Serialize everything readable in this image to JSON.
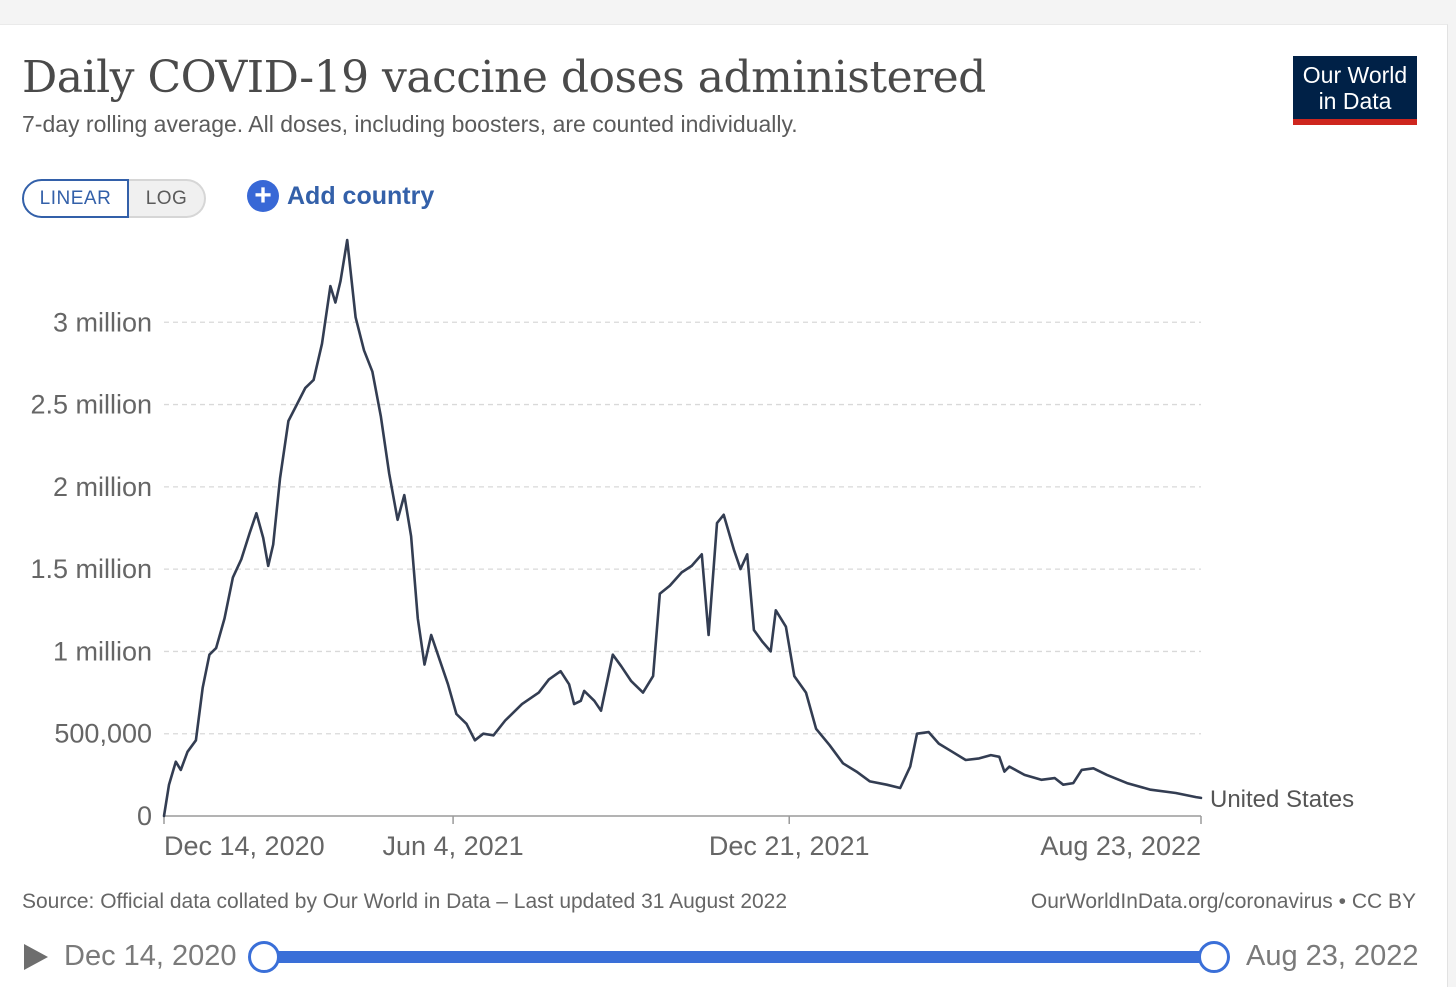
{
  "header": {
    "title": "Daily COVID-19 vaccine doses administered",
    "subtitle": "7-day rolling average. All doses, including boosters, are counted individually."
  },
  "logo": {
    "line1": "Our World",
    "line2": "in Data"
  },
  "controls": {
    "scale_linear": "LINEAR",
    "scale_log": "LOG",
    "selected_scale": "LINEAR",
    "add_country": "Add country",
    "add_icon": "plus-circle-icon"
  },
  "footer": {
    "source": "Source: Official data collated by Our World in Data – Last updated 31 August 2022",
    "license": "OurWorldInData.org/coronavirus • CC BY"
  },
  "timeline": {
    "start_label": "Dec 14, 2020",
    "end_label": "Aug 23, 2022",
    "play_icon": "play-icon",
    "range_fraction": [
      0,
      1
    ]
  },
  "colors": {
    "line": "#333d52",
    "accent": "#3360a9",
    "slider": "#3a6fd8",
    "logo_bg": "#002147",
    "logo_bar": "#ce261e"
  },
  "chart_data": {
    "type": "line",
    "title": "Daily COVID-19 vaccine doses administered",
    "ylim": [
      0,
      3500000
    ],
    "y_ticks": [
      {
        "value": 0,
        "label": "0"
      },
      {
        "value": 500000,
        "label": "500,000"
      },
      {
        "value": 1000000,
        "label": "1 million"
      },
      {
        "value": 1500000,
        "label": "1.5 million"
      },
      {
        "value": 2000000,
        "label": "2 million"
      },
      {
        "value": 2500000,
        "label": "2.5 million"
      },
      {
        "value": 3000000,
        "label": "3 million"
      }
    ],
    "x_range": [
      "2020-12-14",
      "2022-08-23"
    ],
    "x_ticks": [
      {
        "date": "2020-12-14",
        "label": "Dec 14, 2020"
      },
      {
        "date": "2021-06-04",
        "label": "Jun 4, 2021"
      },
      {
        "date": "2021-12-21",
        "label": "Dec 21, 2021"
      },
      {
        "date": "2022-08-23",
        "label": "Aug 23, 2022"
      }
    ],
    "grid": "horizontal-dashed",
    "series": [
      {
        "name": "United States",
        "points": [
          [
            "2020-12-14",
            0
          ],
          [
            "2020-12-17",
            190000
          ],
          [
            "2020-12-21",
            330000
          ],
          [
            "2020-12-24",
            280000
          ],
          [
            "2020-12-28",
            390000
          ],
          [
            "2021-01-02",
            460000
          ],
          [
            "2021-01-06",
            780000
          ],
          [
            "2021-01-10",
            980000
          ],
          [
            "2021-01-14",
            1020000
          ],
          [
            "2021-01-19",
            1200000
          ],
          [
            "2021-01-24",
            1450000
          ],
          [
            "2021-01-29",
            1560000
          ],
          [
            "2021-02-03",
            1720000
          ],
          [
            "2021-02-07",
            1840000
          ],
          [
            "2021-02-11",
            1690000
          ],
          [
            "2021-02-14",
            1520000
          ],
          [
            "2021-02-17",
            1650000
          ],
          [
            "2021-02-21",
            2050000
          ],
          [
            "2021-02-26",
            2400000
          ],
          [
            "2021-03-03",
            2500000
          ],
          [
            "2021-03-08",
            2600000
          ],
          [
            "2021-03-13",
            2650000
          ],
          [
            "2021-03-18",
            2870000
          ],
          [
            "2021-03-23",
            3220000
          ],
          [
            "2021-03-26",
            3120000
          ],
          [
            "2021-03-29",
            3250000
          ],
          [
            "2021-04-02",
            3500000
          ],
          [
            "2021-04-07",
            3030000
          ],
          [
            "2021-04-12",
            2830000
          ],
          [
            "2021-04-17",
            2700000
          ],
          [
            "2021-04-22",
            2430000
          ],
          [
            "2021-04-27",
            2080000
          ],
          [
            "2021-05-02",
            1800000
          ],
          [
            "2021-05-06",
            1950000
          ],
          [
            "2021-05-10",
            1700000
          ],
          [
            "2021-05-14",
            1200000
          ],
          [
            "2021-05-18",
            920000
          ],
          [
            "2021-05-22",
            1100000
          ],
          [
            "2021-05-27",
            950000
          ],
          [
            "2021-06-01",
            800000
          ],
          [
            "2021-06-06",
            620000
          ],
          [
            "2021-06-12",
            560000
          ],
          [
            "2021-06-17",
            460000
          ],
          [
            "2021-06-22",
            500000
          ],
          [
            "2021-06-28",
            490000
          ],
          [
            "2021-07-05",
            580000
          ],
          [
            "2021-07-15",
            680000
          ],
          [
            "2021-07-25",
            750000
          ],
          [
            "2021-07-31",
            830000
          ],
          [
            "2021-08-07",
            880000
          ],
          [
            "2021-08-12",
            800000
          ],
          [
            "2021-08-15",
            680000
          ],
          [
            "2021-08-19",
            700000
          ],
          [
            "2021-08-21",
            760000
          ],
          [
            "2021-08-27",
            700000
          ],
          [
            "2021-08-31",
            640000
          ],
          [
            "2021-09-07",
            980000
          ],
          [
            "2021-09-12",
            910000
          ],
          [
            "2021-09-18",
            820000
          ],
          [
            "2021-09-25",
            750000
          ],
          [
            "2021-10-01",
            850000
          ],
          [
            "2021-10-05",
            1350000
          ],
          [
            "2021-10-11",
            1400000
          ],
          [
            "2021-10-18",
            1480000
          ],
          [
            "2021-10-24",
            1520000
          ],
          [
            "2021-10-30",
            1590000
          ],
          [
            "2021-11-03",
            1100000
          ],
          [
            "2021-11-08",
            1780000
          ],
          [
            "2021-11-12",
            1830000
          ],
          [
            "2021-11-18",
            1620000
          ],
          [
            "2021-11-22",
            1500000
          ],
          [
            "2021-11-26",
            1590000
          ],
          [
            "2021-11-30",
            1130000
          ],
          [
            "2021-12-05",
            1060000
          ],
          [
            "2021-12-10",
            1000000
          ],
          [
            "2021-12-13",
            1250000
          ],
          [
            "2021-12-19",
            1150000
          ],
          [
            "2021-12-24",
            850000
          ],
          [
            "2021-12-31",
            750000
          ],
          [
            "2022-01-06",
            530000
          ],
          [
            "2022-01-14",
            430000
          ],
          [
            "2022-01-22",
            320000
          ],
          [
            "2022-01-30",
            270000
          ],
          [
            "2022-02-07",
            210000
          ],
          [
            "2022-02-17",
            190000
          ],
          [
            "2022-02-25",
            170000
          ],
          [
            "2022-03-03",
            300000
          ],
          [
            "2022-03-07",
            500000
          ],
          [
            "2022-03-14",
            510000
          ],
          [
            "2022-03-20",
            440000
          ],
          [
            "2022-03-28",
            390000
          ],
          [
            "2022-04-05",
            340000
          ],
          [
            "2022-04-13",
            350000
          ],
          [
            "2022-04-20",
            370000
          ],
          [
            "2022-04-25",
            360000
          ],
          [
            "2022-04-28",
            270000
          ],
          [
            "2022-05-01",
            300000
          ],
          [
            "2022-05-10",
            250000
          ],
          [
            "2022-05-20",
            220000
          ],
          [
            "2022-05-28",
            230000
          ],
          [
            "2022-06-02",
            190000
          ],
          [
            "2022-06-08",
            200000
          ],
          [
            "2022-06-13",
            280000
          ],
          [
            "2022-06-20",
            290000
          ],
          [
            "2022-06-28",
            250000
          ],
          [
            "2022-07-10",
            200000
          ],
          [
            "2022-07-24",
            160000
          ],
          [
            "2022-08-08",
            140000
          ],
          [
            "2022-08-20",
            115000
          ],
          [
            "2022-08-23",
            110000
          ]
        ]
      }
    ]
  }
}
